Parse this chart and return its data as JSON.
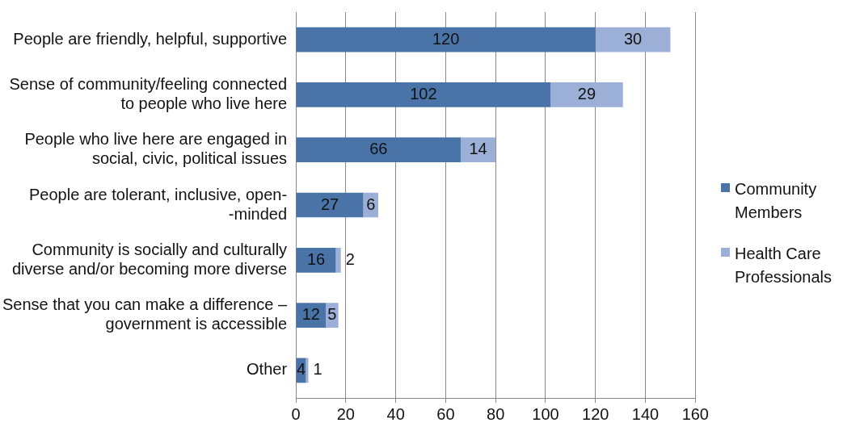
{
  "chart_data": {
    "type": "bar",
    "orientation": "horizontal",
    "stacked": true,
    "categories": [
      "People are friendly, helpful, supportive",
      "Sense of community/feeling connected\nto people who live here",
      "People who live here are engaged in\nsocial, civic, political issues",
      "People are tolerant, inclusive, open-\n-minded",
      "Community is socially and culturally\ndiverse and/or becoming more diverse",
      "Sense that you can make a difference –\ngovernment is accessible",
      "Other"
    ],
    "series": [
      {
        "name": "Community Members",
        "color": "#4a73a8",
        "values": [
          120,
          102,
          66,
          27,
          16,
          12,
          4
        ]
      },
      {
        "name": "Health Care Professionals",
        "color": "#9cb0d7",
        "values": [
          30,
          29,
          14,
          6,
          2,
          5,
          1
        ]
      }
    ],
    "xlim": [
      0,
      160
    ],
    "xticks": [
      0,
      20,
      40,
      60,
      80,
      100,
      120,
      140,
      160
    ],
    "grid": "x",
    "legend": "right",
    "data_labels": true
  }
}
